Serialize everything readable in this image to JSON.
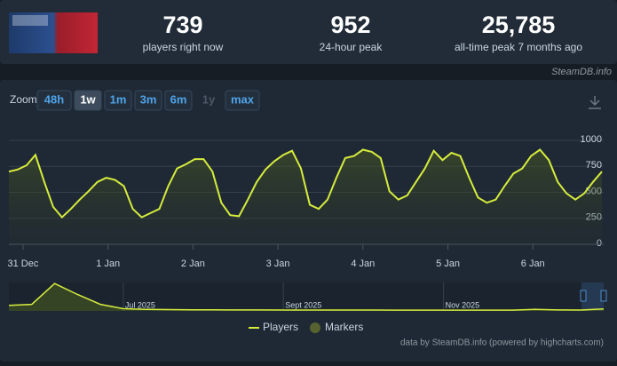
{
  "header": {
    "stats": [
      {
        "value": "739",
        "label": "players right now"
      },
      {
        "value": "952",
        "label": "24-hour peak"
      },
      {
        "value": "25,785",
        "label": "all-time peak 7 months ago"
      }
    ],
    "source": "SteamDB.info"
  },
  "zoom": {
    "label": "Zoom",
    "options": [
      "48h",
      "1w",
      "1m",
      "3m",
      "6m",
      "1y",
      "max"
    ],
    "selected": "1w",
    "disabled": [
      "1y"
    ]
  },
  "chart_data": {
    "type": "line",
    "x": [
      -4,
      -1.5,
      1,
      3.5,
      6,
      8.5,
      11,
      13.5,
      16,
      18.5,
      21,
      23.5,
      26,
      28.5,
      31,
      33.5,
      36,
      38.5,
      41,
      43.5,
      46,
      48.5,
      51,
      53.5,
      56,
      58.5,
      61,
      63.5,
      66,
      68.5,
      71,
      73.5,
      76,
      78.5,
      81,
      83.5,
      86,
      88.5,
      91,
      93.5,
      96,
      98.5,
      101,
      103.5,
      106,
      108.5,
      111,
      113.5,
      116,
      118.5,
      121,
      123.5,
      126,
      128.5,
      131,
      133.5,
      136,
      138.5,
      141,
      143.5,
      146,
      148.5,
      151,
      153.5,
      156,
      158.5,
      161,
      163.5
    ],
    "series": [
      {
        "name": "Players",
        "color": "#d6ec3c",
        "values": [
          700,
          720,
          760,
          860,
          600,
          360,
          260,
          340,
          430,
          510,
          600,
          640,
          620,
          560,
          340,
          260,
          300,
          340,
          560,
          730,
          770,
          820,
          820,
          700,
          400,
          280,
          270,
          430,
          600,
          720,
          800,
          860,
          900,
          730,
          380,
          340,
          430,
          640,
          830,
          850,
          910,
          890,
          830,
          510,
          430,
          470,
          600,
          730,
          900,
          810,
          880,
          850,
          640,
          450,
          400,
          430,
          560,
          680,
          730,
          850,
          910,
          810,
          600,
          490,
          430,
          490,
          600,
          700
        ]
      }
    ],
    "markers": {
      "name": "Markers",
      "color": "#56622f"
    },
    "xlim": [
      -4,
      164
    ],
    "xticks": [
      {
        "value": 0,
        "label": "31 Dec"
      },
      {
        "value": 24,
        "label": "1 Jan"
      },
      {
        "value": 48,
        "label": "2 Jan"
      },
      {
        "value": 72,
        "label": "3 Jan"
      },
      {
        "value": 96,
        "label": "4 Jan"
      },
      {
        "value": 120,
        "label": "5 Jan"
      },
      {
        "value": 144,
        "label": "6 Jan"
      }
    ],
    "ylim": [
      0,
      1000
    ],
    "yticks": [
      0,
      250,
      500,
      750,
      1000
    ],
    "grid": true,
    "navigator": {
      "categories": [
        null,
        null,
        null,
        null,
        null,
        "Jul 2025",
        null,
        null,
        null,
        null,
        null,
        null,
        "Sept 2025",
        null,
        null,
        null,
        null,
        null,
        null,
        "Nov 2025",
        null,
        null,
        null,
        null,
        null,
        null,
        null
      ],
      "values": [
        5000,
        6000,
        25000,
        15000,
        6000,
        2000,
        1500,
        1200,
        1000,
        950,
        900,
        900,
        850,
        850,
        800,
        800,
        780,
        760,
        750,
        740,
        730,
        720,
        720,
        1500,
        900,
        850,
        1800
      ],
      "ylim": [
        0,
        26000
      ]
    },
    "credit": "data by SteamDB.info (powered by highcharts.com)"
  }
}
